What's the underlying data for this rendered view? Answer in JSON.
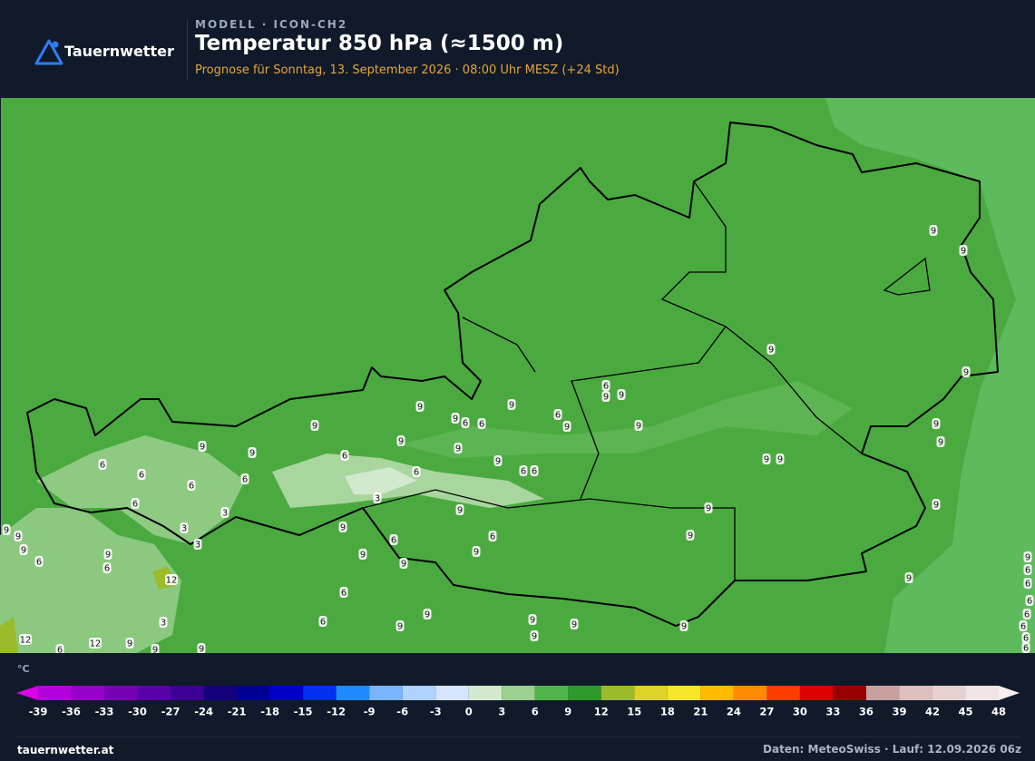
{
  "header": {
    "brand": "Tauernwetter",
    "model": "MODELL · ICON-CH2",
    "title": "Temperatur 850 hPa (≈1500 m)",
    "subtitle": "Prognose für Sonntag, 13. September 2026 · 08:00 Uhr MESZ  (+24 Std)"
  },
  "map": {
    "contour_labels": [
      9,
      9,
      6,
      6,
      9,
      6,
      9,
      6,
      9,
      9,
      9,
      9,
      9,
      9,
      9,
      9,
      9,
      9,
      9,
      9,
      9,
      9,
      9,
      9,
      9,
      6,
      6,
      6,
      3,
      6,
      9,
      6,
      9,
      6,
      6,
      6,
      6,
      3,
      3,
      3,
      12,
      3,
      9,
      6,
      6,
      9,
      9,
      9,
      12,
      12,
      9,
      9,
      9,
      6,
      9,
      9,
      6,
      9,
      6,
      6,
      9,
      9,
      9,
      9,
      9,
      9,
      9,
      9,
      9,
      6,
      6,
      6,
      6,
      6,
      6,
      6,
      6,
      9,
      9,
      9
    ]
  },
  "colorbar": {
    "unit": "°C",
    "ticks": [
      -39,
      -36,
      -33,
      -30,
      -27,
      -24,
      -21,
      -18,
      -15,
      -12,
      -9,
      -6,
      -3,
      0,
      3,
      6,
      9,
      12,
      15,
      18,
      21,
      24,
      27,
      30,
      33,
      36,
      39,
      42,
      45,
      48
    ],
    "lower_color": "#dc00e6",
    "colors": [
      "#b400dc",
      "#9600c8",
      "#7800b4",
      "#5a00aa",
      "#3c0096",
      "#14007d",
      "#000096",
      "#0000c8",
      "#0030f0",
      "#1e8cff",
      "#78b4ff",
      "#afd2ff",
      "#d6e4ff",
      "#d2e8cf",
      "#9bd08f",
      "#50b44a",
      "#2e9a2a",
      "#9cbb2a",
      "#dcd228",
      "#f5e628",
      "#ffbb00",
      "#ff8c00",
      "#ff3c00",
      "#dc0000",
      "#960000",
      "#c8a0a0",
      "#dcbebe",
      "#e6d0d0",
      "#f0e4e4"
    ],
    "upper_color": "#f8f0f0"
  },
  "footer": {
    "site": "tauernwetter.at",
    "source": "Daten: MeteoSwiss · Lauf: 12.09.2026 06z"
  }
}
